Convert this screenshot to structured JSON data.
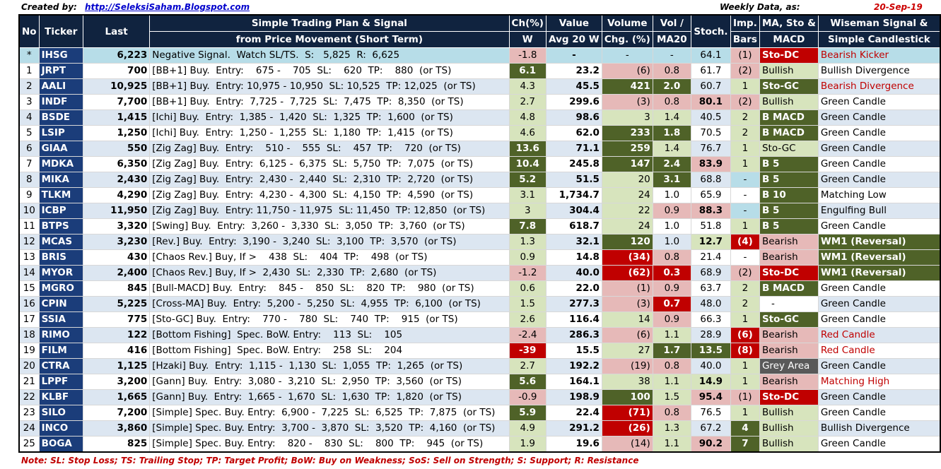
{
  "header": {
    "created_label": "Created by:",
    "link": "http://SeleksiSaham.Blogspot.com",
    "weekly_label": "Weekly Data, as:",
    "date": "20-Sep-19"
  },
  "columns": {
    "no": "No",
    "ticker": "Ticker",
    "last": "Last",
    "plan_1": "Simple Trading Plan & Signal",
    "plan_2": "from Price Movement (Short Term)",
    "ch_1": "Ch(%)",
    "ch_2": "W",
    "value_1": "Value",
    "value_2": "Avg 20 W",
    "volume_1": "Volume",
    "volume_2": "Chg. (%)",
    "vol_1": "Vol /",
    "vol_2": "MA20",
    "stoch": "Stoch.",
    "imp_1": "Imp.",
    "imp_2": "Bars",
    "ma_1": "MA, Sto &",
    "ma_2": "MACD",
    "wise_1": "Wiseman Signal &",
    "wise_2": "Simple Candlestick"
  },
  "rows": [
    {
      "no": "*",
      "ticker": "IHSG",
      "last": "6,223",
      "plan": "Negative Signal.  Watch SL/TS.  S:   5,825  R:  6,625",
      "ch": "-1.8",
      "value": "-",
      "volume": "-",
      "vol": "-",
      "stoch": "64.1",
      "imp": "(1)",
      "ma": "Sto-DC",
      "wise": "Bearish Kicker"
    },
    {
      "no": "1",
      "ticker": "JRPT",
      "last": "700",
      "plan": "[BB+1] Buy.  Entry:    675 -    705  SL:    620  TP:    880  (or TS)",
      "ch": "6.1",
      "value": "23.2",
      "volume": "(6)",
      "vol": "0.8",
      "stoch": "61.7",
      "imp": "(2)",
      "ma": "Bullish",
      "wise": "Bullish Divergence"
    },
    {
      "no": "2",
      "ticker": "AALI",
      "last": "10,925",
      "plan": "[BB+1] Buy.  Entry: 10,975 - 10,950  SL: 10,525  TP: 12,025  (or TS)",
      "ch": "4.3",
      "value": "45.5",
      "volume": "421",
      "vol": "2.0",
      "stoch": "60.7",
      "imp": "1",
      "ma": "Sto-GC",
      "wise": "Bearish Divergence"
    },
    {
      "no": "3",
      "ticker": "INDF",
      "last": "7,700",
      "plan": "[BB+1] Buy.  Entry:  7,725 -  7,725  SL:  7,475  TP:  8,350  (or TS)",
      "ch": "2.7",
      "value": "299.6",
      "volume": "(3)",
      "vol": "0.8",
      "stoch": "80.1",
      "imp": "(2)",
      "ma": "Bullish",
      "wise": "Green Candle"
    },
    {
      "no": "4",
      "ticker": "BSDE",
      "last": "1,415",
      "plan": "[Ichi] Buy.  Entry:  1,385 -  1,420  SL:  1,325  TP:  1,600  (or TS)",
      "ch": "4.8",
      "value": "98.6",
      "volume": "3",
      "vol": "1.4",
      "stoch": "40.5",
      "imp": "2",
      "ma": "B MACD",
      "wise": "Green Candle"
    },
    {
      "no": "5",
      "ticker": "LSIP",
      "last": "1,250",
      "plan": "[Ichi] Buy.  Entry:  1,250 -  1,255  SL:  1,180  TP:  1,415  (or TS)",
      "ch": "4.6",
      "value": "62.0",
      "volume": "233",
      "vol": "1.8",
      "stoch": "70.5",
      "imp": "2",
      "ma": "B MACD",
      "wise": "Green Candle"
    },
    {
      "no": "6",
      "ticker": "GIAA",
      "last": "550",
      "plan": "[Zig Zag] Buy.  Entry:    510 -    555  SL:    457  TP:    720  (or TS)",
      "ch": "13.6",
      "value": "71.1",
      "volume": "259",
      "vol": "1.4",
      "stoch": "76.7",
      "imp": "1",
      "ma": "Sto-GC",
      "wise": "Green Candle"
    },
    {
      "no": "7",
      "ticker": "MDKA",
      "last": "6,350",
      "plan": "[Zig Zag] Buy.  Entry:  6,125 -  6,375  SL:  5,750  TP:  7,075  (or TS)",
      "ch": "10.4",
      "value": "245.8",
      "volume": "147",
      "vol": "2.4",
      "stoch": "83.9",
      "imp": "1",
      "ma": "B 5",
      "wise": "Green Candle"
    },
    {
      "no": "8",
      "ticker": "MIKA",
      "last": "2,430",
      "plan": "[Zig Zag] Buy.  Entry:  2,430 -  2,440  SL:  2,310  TP:  2,720  (or TS)",
      "ch": "5.2",
      "value": "51.5",
      "volume": "20",
      "vol": "3.1",
      "stoch": "68.8",
      "imp": "-",
      "ma": "B 5",
      "wise": "Green Candle"
    },
    {
      "no": "9",
      "ticker": "TLKM",
      "last": "4,290",
      "plan": "[Zig Zag] Buy.  Entry:  4,230 -  4,300  SL:  4,150  TP:  4,590  (or TS)",
      "ch": "3.1",
      "value": "1,734.7",
      "volume": "24",
      "vol": "1.0",
      "stoch": "65.9",
      "imp": "-",
      "ma": "B 10",
      "wise": "Matching Low"
    },
    {
      "no": "10",
      "ticker": "ICBP",
      "last": "11,950",
      "plan": "[Zig Zag] Buy.  Entry: 11,750 - 11,975  SL: 11,450  TP: 12,850  (or TS)",
      "ch": "3",
      "value": "304.4",
      "volume": "22",
      "vol": "0.9",
      "stoch": "88.3",
      "imp": "-",
      "ma": "B 5",
      "wise": "Engulfing Bull"
    },
    {
      "no": "11",
      "ticker": "BTPS",
      "last": "3,320",
      "plan": "[Swing] Buy.  Entry:  3,260 -  3,330  SL:  3,050  TP:  3,760  (or TS)",
      "ch": "7.8",
      "value": "618.7",
      "volume": "24",
      "vol": "1.0",
      "stoch": "51.8",
      "imp": "1",
      "ma": "B 5",
      "wise": "Green Candle"
    },
    {
      "no": "12",
      "ticker": "MCAS",
      "last": "3,230",
      "plan": "[Rev.] Buy.  Entry:  3,190 -  3,240  SL:  3,100  TP:  3,570  (or TS)",
      "ch": "1.3",
      "value": "32.1",
      "volume": "120",
      "vol": "1.0",
      "stoch": "12.7",
      "imp": "(4)",
      "ma": "Bearish",
      "wise": "WM1 (Reversal)"
    },
    {
      "no": "13",
      "ticker": "BRIS",
      "last": "430",
      "plan": "[Chaos Rev.] Buy, If >    438  SL:    404  TP:    498  (or TS)",
      "ch": "0.9",
      "value": "14.8",
      "volume": "(34)",
      "vol": "0.8",
      "stoch": "21.4",
      "imp": "-",
      "ma": "Bearish",
      "wise": "WM1 (Reversal)"
    },
    {
      "no": "14",
      "ticker": "MYOR",
      "last": "2,400",
      "plan": "[Chaos Rev.] Buy, If >  2,430  SL:  2,330  TP:  2,680  (or TS)",
      "ch": "-1.2",
      "value": "40.0",
      "volume": "(62)",
      "vol": "0.3",
      "stoch": "68.9",
      "imp": "(2)",
      "ma": "Sto-DC",
      "wise": "WM1 (Reversal)"
    },
    {
      "no": "15",
      "ticker": "MGRO",
      "last": "845",
      "plan": "[Bull-MACD] Buy.  Entry:    845 -    850  SL:    820  TP:    980  (or TS)",
      "ch": "0.6",
      "value": "22.0",
      "volume": "(1)",
      "vol": "0.9",
      "stoch": "63.7",
      "imp": "2",
      "ma": "B MACD",
      "wise": "Green Candle"
    },
    {
      "no": "16",
      "ticker": "CPIN",
      "last": "5,225",
      "plan": "[Cross-MA] Buy.  Entry:  5,200 -  5,250  SL:  4,955  TP:  6,100  (or TS)",
      "ch": "1.5",
      "value": "277.3",
      "volume": "(3)",
      "vol": "0.7",
      "stoch": "48.0",
      "imp": "2",
      "ma": "-",
      "wise": "Green Candle"
    },
    {
      "no": "17",
      "ticker": "SSIA",
      "last": "775",
      "plan": "[Sto-GC] Buy.  Entry:    770 -    780  SL:    740  TP:    915  (or TS)",
      "ch": "2.6",
      "value": "116.4",
      "volume": "14",
      "vol": "0.9",
      "stoch": "66.3",
      "imp": "1",
      "ma": "Sto-GC",
      "wise": "Green Candle"
    },
    {
      "no": "18",
      "ticker": "RIMO",
      "last": "122",
      "plan": "[Bottom Fishing]  Spec. BoW. Entry:    113  SL:    105",
      "ch": "-2.4",
      "value": "286.3",
      "volume": "(6)",
      "vol": "1.1",
      "stoch": "28.9",
      "imp": "(6)",
      "ma": "Bearish",
      "wise": "Red Candle"
    },
    {
      "no": "19",
      "ticker": "FILM",
      "last": "416",
      "plan": "[Bottom Fishing]  Spec. BoW. Entry:    258  SL:    204",
      "ch": "-39",
      "value": "15.5",
      "volume": "27",
      "vol": "1.7",
      "stoch": "13.5",
      "imp": "(8)",
      "ma": "Bearish",
      "wise": "Red Candle"
    },
    {
      "no": "20",
      "ticker": "CTRA",
      "last": "1,125",
      "plan": "[Hzaki] Buy.  Entry:  1,115 -  1,130  SL:  1,055  TP:  1,265  (or TS)",
      "ch": "2.7",
      "value": "192.2",
      "volume": "(19)",
      "vol": "0.8",
      "stoch": "40.0",
      "imp": "1",
      "ma": "Grey Area",
      "wise": "Green Candle"
    },
    {
      "no": "21",
      "ticker": "LPPF",
      "last": "3,200",
      "plan": "[Gann] Buy.  Entry:  3,080 -  3,210  SL:  2,950  TP:  3,560  (or TS)",
      "ch": "5.6",
      "value": "164.1",
      "volume": "38",
      "vol": "1.1",
      "stoch": "14.9",
      "imp": "1",
      "ma": "Bearish",
      "wise": "Matching High"
    },
    {
      "no": "22",
      "ticker": "KLBF",
      "last": "1,665",
      "plan": "[Gann] Buy.  Entry:  1,665 -  1,670  SL:  1,630  TP:  1,820  (or TS)",
      "ch": "-0.9",
      "value": "198.9",
      "volume": "100",
      "vol": "1.5",
      "stoch": "95.4",
      "imp": "(1)",
      "ma": "Sto-DC",
      "wise": "Green Candle"
    },
    {
      "no": "23",
      "ticker": "SILO",
      "last": "7,200",
      "plan": "[Simple] Spec. Buy. Entry:  6,900 -  7,225  SL:  6,525  TP:  7,875  (or TS)",
      "ch": "5.9",
      "value": "22.4",
      "volume": "(71)",
      "vol": "0.8",
      "stoch": "76.5",
      "imp": "1",
      "ma": "Bullish",
      "wise": "Green Candle"
    },
    {
      "no": "24",
      "ticker": "INCO",
      "last": "3,860",
      "plan": "[Simple] Spec. Buy. Entry:  3,700 -  3,870  SL:  3,520  TP:  4,160  (or TS)",
      "ch": "4.9",
      "value": "291.2",
      "volume": "(26)",
      "vol": "1.3",
      "stoch": "67.2",
      "imp": "4",
      "ma": "Bullish",
      "wise": "Bullish Divergence"
    },
    {
      "no": "25",
      "ticker": "BOGA",
      "last": "825",
      "plan": "[Simple] Spec. Buy. Entry:    820 -    830  SL:    800  TP:    945  (or TS)",
      "ch": "1.9",
      "value": "19.6",
      "volume": "(14)",
      "vol": "1.1",
      "stoch": "90.2",
      "imp": "7",
      "ma": "Bullish",
      "wise": "Green Candle"
    }
  ],
  "note": "Note:  SL: Stop Loss; TS: Trailing Stop; TP: Target Profit; BoW: Buy on Weakness; SoS: Sell on Strength; S: Support; R: Resistance"
}
